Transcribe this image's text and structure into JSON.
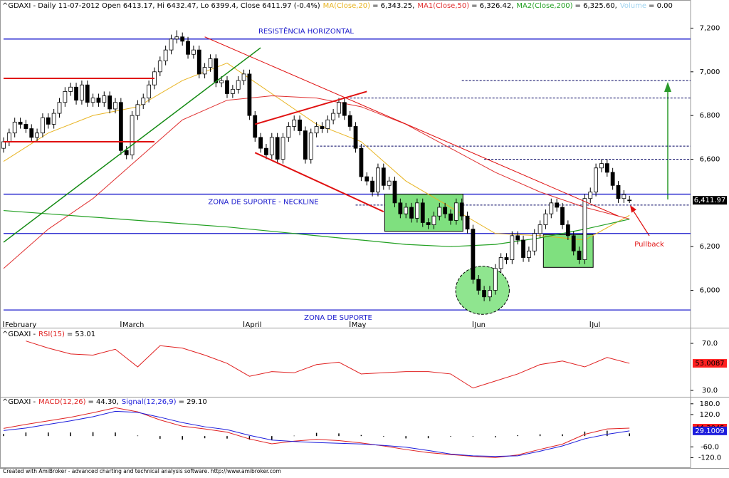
{
  "chart_data": [
    {
      "type": "candlestick",
      "title": "^GDAXI - Daily 11-07-2012 Open 6413.17, Hi 6432.47, Lo 6399.4, Close 6411.97 (-0.4%)",
      "volume": {
        "name": "Volume",
        "text": "= 0.00",
        "color": "#9fd3ef"
      },
      "categories": [
        "February",
        null,
        null,
        null,
        null,
        null,
        null,
        null,
        null,
        null,
        null,
        null,
        null,
        null,
        null,
        null,
        null,
        null,
        null,
        null,
        null,
        "March",
        null,
        null,
        null,
        null,
        null,
        null,
        null,
        null,
        null,
        null,
        null,
        null,
        null,
        null,
        null,
        null,
        null,
        null,
        null,
        null,
        null,
        "April",
        null,
        null,
        null,
        null,
        null,
        null,
        null,
        null,
        null,
        null,
        null,
        null,
        null,
        null,
        null,
        null,
        null,
        null,
        "May",
        null,
        null,
        null,
        null,
        null,
        null,
        null,
        null,
        null,
        null,
        null,
        null,
        null,
        null,
        null,
        null,
        null,
        null,
        null,
        null,
        null,
        "Jun",
        null,
        null,
        null,
        null,
        null,
        null,
        null,
        null,
        null,
        null,
        null,
        null,
        null,
        null,
        null,
        null,
        null,
        null,
        null,
        null,
        "Jul",
        null,
        null,
        null,
        null,
        null,
        null,
        null
      ],
      "open": [
        6650,
        6680,
        6720,
        6770,
        6760,
        6740,
        6700,
        6720,
        6790,
        6760,
        6810,
        6860,
        6910,
        6930,
        6870,
        6940,
        6860,
        6880,
        6860,
        6890,
        6830,
        6860,
        6640,
        6620,
        6800,
        6850,
        6880,
        6940,
        7000,
        7050,
        7100,
        7150,
        7160,
        7140,
        7080,
        7100,
        6990,
        7020,
        7060,
        6950,
        6960,
        6900,
        6920,
        6960,
        6990,
        6800,
        6700,
        6650,
        6620,
        6700,
        6600,
        6700,
        6750,
        6780,
        6730,
        6600,
        6720,
        6750,
        6740,
        6780,
        6810,
        6860,
        6800,
        6750,
        6650,
        6520,
        6500,
        6450,
        6560,
        6480,
        6500,
        6400,
        6350,
        6380,
        6330,
        6400,
        6310,
        6300,
        6340,
        6380,
        6350,
        6320,
        6400,
        6340,
        6280,
        6050,
        6000,
        5970,
        6000,
        6100,
        6150,
        6140,
        6250,
        6230,
        6150,
        6180,
        6260,
        6300,
        6350,
        6400,
        6380,
        6300,
        6250,
        6180,
        6140,
        6420,
        6450,
        6560,
        6580,
        6540,
        6480,
        6420,
        6413.17
      ],
      "high": [
        6700,
        6740,
        6790,
        6790,
        6780,
        6760,
        6740,
        6810,
        6810,
        6830,
        6880,
        6930,
        6950,
        6950,
        6960,
        6960,
        6900,
        6900,
        6910,
        6910,
        6880,
        6880,
        6660,
        6820,
        6870,
        6900,
        6960,
        7020,
        7070,
        7120,
        7170,
        7190,
        7180,
        7160,
        7120,
        7120,
        7040,
        7080,
        7080,
        6980,
        6980,
        6940,
        6980,
        7010,
        7010,
        6820,
        6720,
        6670,
        6720,
        6720,
        6720,
        6770,
        6800,
        6800,
        6750,
        6740,
        6770,
        6770,
        6800,
        6830,
        6880,
        6880,
        6820,
        6770,
        6670,
        6540,
        6520,
        6580,
        6580,
        6520,
        6520,
        6420,
        6400,
        6400,
        6420,
        6420,
        6330,
        6360,
        6400,
        6400,
        6370,
        6420,
        6420,
        6360,
        6300,
        6070,
        6020,
        6020,
        6120,
        6170,
        6170,
        6270,
        6270,
        6250,
        6200,
        6280,
        6320,
        6370,
        6420,
        6420,
        6400,
        6320,
        6270,
        6200,
        6440,
        6470,
        6580,
        6600,
        6600,
        6560,
        6500,
        6458,
        6432.47
      ],
      "low": [
        6630,
        6660,
        6700,
        6740,
        6720,
        6680,
        6680,
        6700,
        6740,
        6740,
        6790,
        6840,
        6890,
        6850,
        6850,
        6840,
        6840,
        6840,
        6840,
        6810,
        6810,
        6620,
        6600,
        6600,
        6780,
        6830,
        6860,
        6920,
        6980,
        7030,
        7080,
        7130,
        7120,
        7060,
        7060,
        6970,
        6970,
        7000,
        6930,
        6930,
        6880,
        6880,
        6900,
        6940,
        6780,
        6680,
        6630,
        6600,
        6600,
        6580,
        6580,
        6680,
        6730,
        6710,
        6580,
        6580,
        6700,
        6720,
        6720,
        6760,
        6790,
        6780,
        6730,
        6630,
        6500,
        6480,
        6430,
        6430,
        6460,
        6460,
        6380,
        6330,
        6330,
        6310,
        6310,
        6290,
        6280,
        6280,
        6320,
        6330,
        6300,
        6300,
        6320,
        6260,
        6030,
        5980,
        5950,
        5950,
        5980,
        6080,
        6120,
        6120,
        6210,
        6130,
        6130,
        6160,
        6240,
        6280,
        6330,
        6360,
        6280,
        6230,
        6160,
        6120,
        6120,
        6400,
        6430,
        6540,
        6520,
        6460,
        6400,
        6400,
        6399.4
      ],
      "close": [
        6680,
        6720,
        6770,
        6760,
        6740,
        6700,
        6720,
        6790,
        6760,
        6810,
        6860,
        6910,
        6930,
        6870,
        6940,
        6860,
        6880,
        6860,
        6890,
        6830,
        6860,
        6640,
        6620,
        6800,
        6850,
        6880,
        6940,
        7000,
        7050,
        7100,
        7150,
        7160,
        7140,
        7080,
        7100,
        6990,
        7020,
        7060,
        6950,
        6960,
        6900,
        6920,
        6960,
        6990,
        6800,
        6700,
        6650,
        6620,
        6700,
        6600,
        6700,
        6750,
        6780,
        6730,
        6600,
        6720,
        6750,
        6740,
        6780,
        6810,
        6860,
        6800,
        6750,
        6650,
        6520,
        6500,
        6450,
        6560,
        6480,
        6500,
        6400,
        6350,
        6380,
        6330,
        6400,
        6310,
        6300,
        6340,
        6380,
        6350,
        6320,
        6400,
        6340,
        6280,
        6050,
        6000,
        5970,
        6000,
        6100,
        6150,
        6140,
        6250,
        6230,
        6150,
        6180,
        6260,
        6300,
        6350,
        6400,
        6380,
        6300,
        6250,
        6180,
        6140,
        6420,
        6450,
        6560,
        6580,
        6540,
        6480,
        6420,
        6438,
        6411.97
      ],
      "up_color": "#ffffff",
      "down_color": "#000000",
      "ylim": [
        5855,
        7270
      ],
      "yticks": [
        {
          "value": 6000,
          "label": "6,000"
        },
        {
          "value": 6200,
          "label": "6,200"
        },
        {
          "value": 6600,
          "label": "6,600"
        },
        {
          "value": 6800,
          "label": "6,800"
        },
        {
          "value": 7000,
          "label": "7,000"
        },
        {
          "value": 7200,
          "label": "7,200"
        }
      ],
      "last_labels": [
        {
          "value": 6411.97,
          "label": "6,411.97",
          "bg": "#000000",
          "fg": "#ffffff"
        }
      ],
      "series": [
        {
          "name": "MA(Close,20)",
          "value_text": "= 6,343.25,",
          "color": "#e8b422",
          "width": 1,
          "x": [
            0,
            8,
            16,
            24,
            32,
            40,
            48,
            56,
            64,
            72,
            80,
            88,
            96,
            104,
            112
          ],
          "values": [
            6590,
            6720,
            6800,
            6840,
            6960,
            7040,
            6900,
            6760,
            6680,
            6500,
            6380,
            6260,
            6250,
            6230,
            6343.25
          ]
        },
        {
          "name": "MA1(Close,50)",
          "value_text": "= 6,326.42,",
          "color": "#e03030",
          "width": 1,
          "x": [
            0,
            8,
            16,
            24,
            32,
            40,
            48,
            56,
            64,
            72,
            80,
            88,
            96,
            104,
            112
          ],
          "values": [
            6100,
            6280,
            6420,
            6600,
            6780,
            6870,
            6890,
            6880,
            6840,
            6760,
            6650,
            6540,
            6450,
            6380,
            6326.42
          ]
        },
        {
          "name": "MA2(Close,200)",
          "value_text": "= 6,325.60,",
          "color": "#22a022",
          "width": 1.2,
          "x": [
            0,
            8,
            16,
            24,
            32,
            40,
            48,
            56,
            64,
            72,
            80,
            88,
            96,
            104,
            112
          ],
          "values": [
            6365,
            6350,
            6335,
            6320,
            6305,
            6290,
            6270,
            6250,
            6230,
            6210,
            6200,
            6210,
            6240,
            6280,
            6325.6
          ]
        }
      ],
      "levels": [
        {
          "value": 7150,
          "style": "solid",
          "color": "#1a1acc",
          "from": 0,
          "label": "RESISTÊNCIA HORIZONTAL"
        },
        {
          "value": 6960,
          "style": "dashed",
          "color": "#000060",
          "from": 82
        },
        {
          "value": 6880,
          "style": "dashed",
          "color": "#000060",
          "from": 62
        },
        {
          "value": 6660,
          "style": "dashed",
          "color": "#000060",
          "from": 56
        },
        {
          "value": 6600,
          "style": "dashed",
          "color": "#000060",
          "from": 86
        },
        {
          "value": 6440,
          "style": "solid",
          "color": "#1a1acc",
          "from": 0,
          "label": "ZONA DE SUPORTE - NECKLINE"
        },
        {
          "value": 6390,
          "style": "dashed",
          "color": "#000060",
          "from": 63
        },
        {
          "value": 6260,
          "style": "solid",
          "color": "#1a1acc",
          "from": 0
        },
        {
          "value": 5910,
          "style": "solid",
          "color": "#1a1acc",
          "from": 0,
          "label": "ZONA DE SUPORTE"
        }
      ],
      "trendlines": [
        {
          "from": [
            0,
            6220
          ],
          "to": [
            46,
            7110
          ],
          "color": "#138a13",
          "width": 1.5
        },
        {
          "from": [
            0,
            6970
          ],
          "to": [
            27,
            6970
          ],
          "color": "#e01010",
          "width": 2
        },
        {
          "from": [
            0,
            6680
          ],
          "to": [
            27,
            6680
          ],
          "color": "#e01010",
          "width": 2
        },
        {
          "from": [
            45,
            6760
          ],
          "to": [
            65,
            6910
          ],
          "color": "#e01010",
          "width": 2
        },
        {
          "from": [
            45,
            6630
          ],
          "to": [
            68,
            6360
          ],
          "color": "#e01010",
          "width": 2
        },
        {
          "from": [
            36,
            7160
          ],
          "to": [
            110,
            6340
          ],
          "color": "#e01010",
          "width": 1
        }
      ],
      "zones": [
        {
          "from": 68.2,
          "to": 82.2,
          "low": 6270,
          "high": 6440,
          "color": "#7fe07f"
        },
        {
          "from": 96.6,
          "to": 105.5,
          "low": 6105,
          "high": 6255,
          "color": "#7fe07f"
        }
      ],
      "ellipse": {
        "center": [
          85.7,
          6000
        ],
        "rx": 4.8,
        "ry": 110,
        "color": "#8fe58f"
      },
      "annotation": "Pullback"
    },
    {
      "type": "line",
      "title": "^GDAXI -",
      "ylim": [
        25.8,
        81.5
      ],
      "yticks": [
        {
          "value": 70,
          "label": "70.0"
        },
        {
          "value": 30,
          "label": "30.0"
        }
      ],
      "last_labels": [
        {
          "value": 53.0087,
          "label": "53.0087",
          "bg": "#ff2020",
          "fg": "#000000"
        }
      ],
      "series": [
        {
          "name": "RSI(15)",
          "value_text": "= 53.01",
          "color": "#e02020",
          "width": 1,
          "x": [
            4,
            8,
            12,
            16,
            20,
            24,
            28,
            32,
            36,
            40,
            44,
            48,
            52,
            56,
            60,
            64,
            68,
            72,
            76,
            80,
            84,
            88,
            92,
            96,
            100,
            104,
            108,
            112
          ],
          "values": [
            72,
            66,
            61,
            60,
            65,
            50,
            68,
            66,
            60,
            53,
            42,
            46,
            45,
            52,
            54,
            44,
            45,
            46,
            46,
            44,
            32,
            38,
            44,
            52,
            55,
            50,
            58,
            53.01
          ]
        }
      ]
    },
    {
      "type": "macd",
      "title": "^GDAXI -",
      "ylim": [
        -170,
        207
      ],
      "yticks": [
        {
          "value": 180,
          "label": "180.0"
        },
        {
          "value": 120,
          "label": "120.0"
        },
        {
          "value": -60,
          "label": "-60.0"
        },
        {
          "value": -120,
          "label": "-120.0"
        }
      ],
      "last_labels": [
        {
          "value": 44.3045,
          "label": "44.3045",
          "bg": "#ff2020",
          "fg": "#000000"
        },
        {
          "value": 29.1009,
          "label": "29.1009",
          "bg": "#1c1cdc",
          "fg": "#ffffff"
        }
      ],
      "series": [
        {
          "name": "MACD(12,26)",
          "value_text": "= 44.30,",
          "color": "#e02020",
          "width": 1,
          "x": [
            0,
            4,
            8,
            12,
            16,
            20,
            24,
            28,
            32,
            36,
            40,
            44,
            48,
            52,
            56,
            60,
            64,
            68,
            72,
            76,
            80,
            84,
            88,
            92,
            96,
            100,
            104,
            108,
            112
          ],
          "values": [
            43,
            65,
            85,
            105,
            130,
            158,
            135,
            90,
            55,
            40,
            22,
            -16,
            -43,
            -28,
            -18,
            -25,
            -38,
            -55,
            -75,
            -92,
            -103,
            -113,
            -120,
            -105,
            -74,
            -45,
            10,
            40,
            44.3
          ]
        },
        {
          "name": "Signal(12,26,9)",
          "value_text": "= 29.10",
          "color": "#1c1cdc",
          "width": 1,
          "x": [
            0,
            4,
            8,
            12,
            16,
            20,
            24,
            28,
            32,
            36,
            40,
            44,
            48,
            52,
            56,
            60,
            64,
            68,
            72,
            76,
            80,
            84,
            88,
            92,
            96,
            100,
            104,
            108,
            112
          ],
          "values": [
            31,
            45,
            65,
            85,
            108,
            138,
            132,
            105,
            75,
            52,
            36,
            4,
            -22,
            -30,
            -36,
            -40,
            -44,
            -52,
            -62,
            -80,
            -100,
            -110,
            -113,
            -110,
            -84,
            -55,
            -15,
            10,
            29.1
          ]
        }
      ],
      "histogram": {
        "color": "#000000",
        "x": [
          0,
          4,
          8,
          12,
          16,
          20,
          24,
          28,
          32,
          36,
          40,
          44,
          48,
          52,
          56,
          60,
          64,
          68,
          72,
          76,
          80,
          84,
          88,
          92,
          96,
          100,
          104,
          108,
          112
        ],
        "values": [
          12,
          20,
          20,
          20,
          22,
          20,
          3,
          -15,
          -20,
          -12,
          -14,
          -20,
          -21,
          2,
          18,
          15,
          6,
          -3,
          -13,
          -12,
          -3,
          -3,
          -7,
          5,
          10,
          10,
          25,
          30,
          15.2
        ]
      }
    }
  ],
  "footer": "Created with AmiBroker - advanced charting and technical analysis software. http://www.amibroker.com"
}
